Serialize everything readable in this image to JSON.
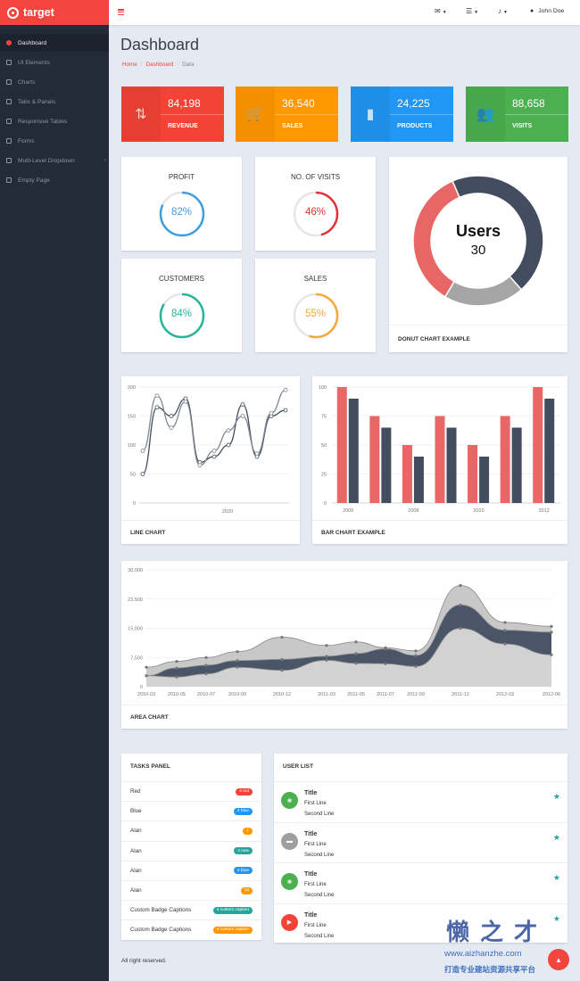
{
  "brand": {
    "name": "target"
  },
  "topbar": {
    "user_name": "John Doe"
  },
  "sidebar": {
    "items": [
      {
        "label": "Dashboard"
      },
      {
        "label": "UI Elements"
      },
      {
        "label": "Charts"
      },
      {
        "label": "Tabs & Panels"
      },
      {
        "label": "Responsive Tables"
      },
      {
        "label": "Forms"
      },
      {
        "label": "Multi-Level Dropdown"
      },
      {
        "label": "Empty Page"
      }
    ]
  },
  "page": {
    "title": "Dashboard",
    "breadcrumb": [
      "Home",
      "Dashboard",
      "Data"
    ]
  },
  "stats": [
    {
      "value": "84,198",
      "label": "REVENUE",
      "color": "#f44336",
      "icon": "exchange-icon"
    },
    {
      "value": "36,540",
      "label": "SALES",
      "color": "#ff9800",
      "icon": "cart-icon"
    },
    {
      "value": "24,225",
      "label": "PRODUCTS",
      "color": "#2196f3",
      "icon": "bar-chart-icon"
    },
    {
      "value": "88,658",
      "label": "VISITS",
      "color": "#4caf50",
      "icon": "users-icon"
    }
  ],
  "mini": [
    {
      "label": "PROFIT",
      "value": "82%",
      "percent": 82,
      "color": "#3f9fde"
    },
    {
      "label": "NO. OF VISITS",
      "value": "46%",
      "percent": 46,
      "color": "#e0323a"
    },
    {
      "label": "CUSTOMERS",
      "value": "84%",
      "percent": 84,
      "color": "#26b59b"
    },
    {
      "label": "SALES",
      "value": "55%",
      "percent": 55,
      "color": "#f5a83b"
    }
  ],
  "donut": {
    "center_title": "Users",
    "center_value": "30",
    "caption": "DONUT CHART EXAMPLE"
  },
  "captions": {
    "line": "LINE CHART",
    "bar": "BAR CHART EXAMPLE",
    "area": "AREA CHART",
    "tasks": "TASKS PANEL",
    "users": "USER LIST"
  },
  "chart_data": [
    {
      "type": "pie",
      "title": "Users",
      "slices": [
        {
          "value": 45,
          "color": "#424d60"
        },
        {
          "value": 20,
          "color": "#a5a5a5"
        },
        {
          "value": 35,
          "color": "#e86666"
        }
      ]
    },
    {
      "type": "line",
      "ylim": [
        0,
        200
      ],
      "yticks": [
        "0",
        "50",
        "100",
        "150",
        "200"
      ],
      "xticks": [
        "2020"
      ],
      "series": [
        {
          "values": [
            50,
            165,
            150,
            180,
            70,
            80,
            100,
            170,
            80,
            150,
            160
          ],
          "color": "#444c58"
        },
        {
          "values": [
            90,
            185,
            130,
            175,
            65,
            90,
            125,
            150,
            85,
            155,
            195
          ],
          "color": "#7f8792"
        }
      ]
    },
    {
      "type": "bar",
      "ylim": [
        0,
        100
      ],
      "yticks": [
        "0",
        "25",
        "50",
        "75",
        "100"
      ],
      "categories": [
        "2006",
        "2007",
        "2008",
        "2009",
        "2010",
        "2011",
        "2012"
      ],
      "xticks": [
        "2006",
        "2008",
        "2010",
        "2012"
      ],
      "series": [
        {
          "values": [
            100,
            75,
            50,
            75,
            50,
            75,
            100
          ],
          "color": "#e86666"
        },
        {
          "values": [
            90,
            65,
            40,
            65,
            40,
            65,
            90
          ],
          "color": "#424d60"
        }
      ]
    },
    {
      "type": "area",
      "ylim": [
        0,
        30000
      ],
      "yticks": [
        "0",
        "7,500",
        "15,000",
        "22,500",
        "30,000"
      ],
      "x": [
        "2010-03",
        "2010-05",
        "2010-07",
        "2010-09",
        "2010-12",
        "2011-03",
        "2011-05",
        "2011-07",
        "2011-09",
        "2011-12",
        "2012-03",
        "2012-06"
      ],
      "series": [
        {
          "values": [
            2800,
            2500,
            3300,
            5000,
            4200,
            6800,
            6000,
            5900,
            5200,
            15000,
            11000,
            8200
          ],
          "color": "#d2d2d2"
        },
        {
          "values": [
            2800,
            4800,
            5500,
            6700,
            7000,
            7800,
            8500,
            9700,
            8000,
            21000,
            14500,
            14000
          ],
          "color": "#4a5568"
        },
        {
          "values": [
            5000,
            6500,
            7500,
            9000,
            12700,
            10600,
            11500,
            10000,
            9200,
            26000,
            16500,
            15500
          ],
          "color": "#c8c8c8"
        }
      ]
    }
  ],
  "tasks": [
    {
      "label": "Red",
      "badge": "4 red",
      "color": "#f44336"
    },
    {
      "label": "Blue",
      "badge": "4 blue",
      "color": "#2196f3"
    },
    {
      "label": "Alan",
      "badge": "1",
      "color": "#ff9800"
    },
    {
      "label": "Alan",
      "badge": "4 new",
      "color": "#26a69a"
    },
    {
      "label": "Alan",
      "badge": "4 blue",
      "color": "#2196f3"
    },
    {
      "label": "Alan",
      "badge": "18",
      "color": "#ff9800"
    },
    {
      "label": "Custom Badge Captions",
      "badge": "4 custom caption",
      "color": "#26a69a"
    },
    {
      "label": "Custom Badge Captions",
      "badge": "4 custom caption",
      "color": "#ff9800"
    }
  ],
  "users": [
    {
      "title": "Title",
      "line1": "First Line",
      "line2": "Second Line",
      "color": "#4caf50",
      "icon": "leaf-icon"
    },
    {
      "title": "Title",
      "line1": "First Line",
      "line2": "Second Line",
      "color": "#9e9e9e",
      "icon": "folder-icon"
    },
    {
      "title": "Title",
      "line1": "First Line",
      "line2": "Second Line",
      "color": "#4caf50",
      "icon": "leaf-icon"
    },
    {
      "title": "Title",
      "line1": "First Line",
      "line2": "Second Line",
      "color": "#f44336",
      "icon": "play-icon"
    }
  ],
  "footer": {
    "text": "All right reserved."
  },
  "watermark": {
    "text": "懒之才",
    "url": "www.aizhanzhe.com",
    "sub": "打造专业建站资源共享平台"
  }
}
